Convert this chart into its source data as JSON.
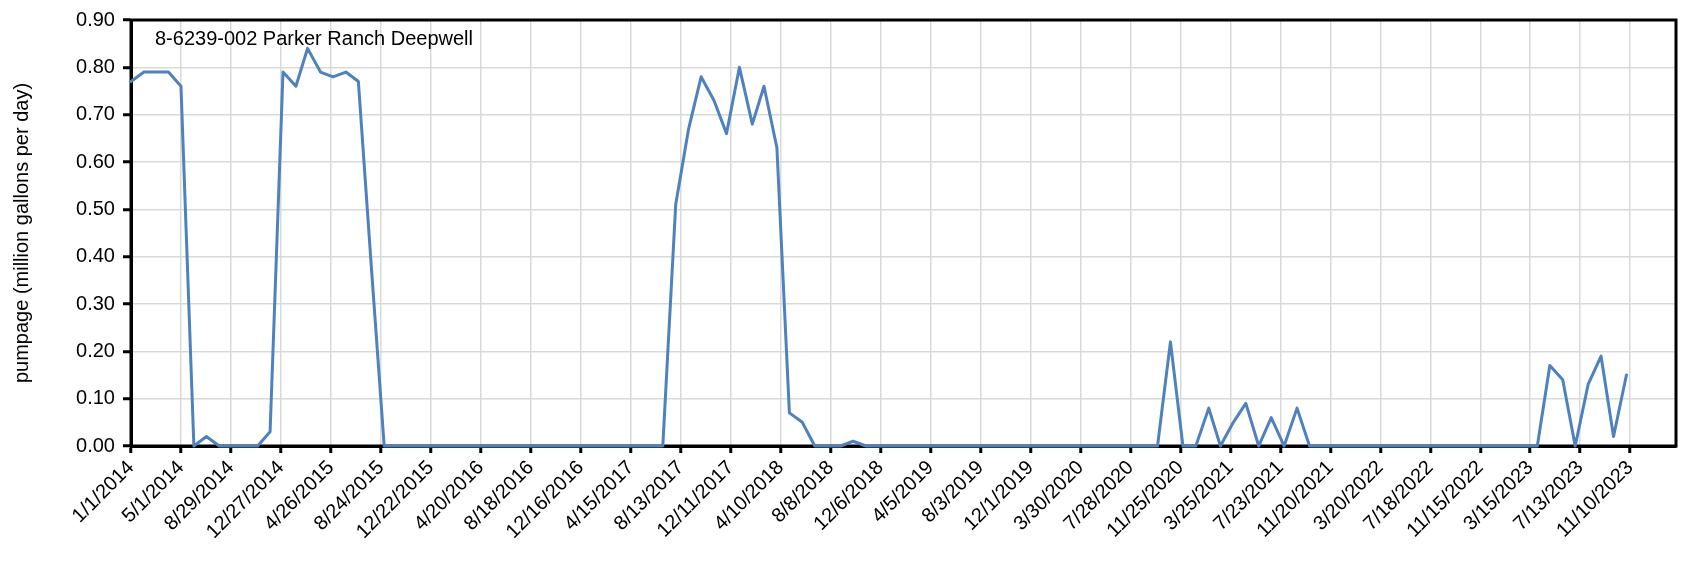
{
  "chart_data": {
    "type": "line",
    "title": "8-6239-002 Parker Ranch Deepwell",
    "ylabel": "pumpage (million gallons per day)",
    "x": [
      "2014-01",
      "2014-02",
      "2014-03",
      "2014-04",
      "2014-05",
      "2014-06",
      "2014-07",
      "2014-08",
      "2014-09",
      "2014-10",
      "2014-11",
      "2014-12",
      "2015-01",
      "2015-02",
      "2015-03",
      "2015-04",
      "2015-05",
      "2015-06",
      "2015-07",
      "2015-08",
      "2015-09",
      "2015-10",
      "2015-11",
      "2015-12",
      "2016-01",
      "2016-02",
      "2016-03",
      "2016-04",
      "2016-05",
      "2016-06",
      "2016-07",
      "2016-08",
      "2016-09",
      "2016-10",
      "2016-11",
      "2016-12",
      "2017-01",
      "2017-02",
      "2017-03",
      "2017-04",
      "2017-05",
      "2017-06",
      "2017-07",
      "2017-08",
      "2017-09",
      "2017-10",
      "2017-11",
      "2017-12",
      "2018-01",
      "2018-02",
      "2018-03",
      "2018-04",
      "2018-05",
      "2018-06",
      "2018-07",
      "2018-08",
      "2018-09",
      "2018-10",
      "2018-11",
      "2018-12",
      "2019-01",
      "2019-02",
      "2019-03",
      "2019-04",
      "2019-05",
      "2019-06",
      "2019-07",
      "2019-08",
      "2019-09",
      "2019-10",
      "2019-11",
      "2019-12",
      "2020-01",
      "2020-02",
      "2020-03",
      "2020-04",
      "2020-05",
      "2020-06",
      "2020-07",
      "2020-08",
      "2020-09",
      "2020-10",
      "2020-11",
      "2020-12",
      "2021-01",
      "2021-02",
      "2021-03",
      "2021-04",
      "2021-05",
      "2021-06",
      "2021-07",
      "2021-08",
      "2021-09",
      "2021-10",
      "2021-11",
      "2021-12",
      "2022-01",
      "2022-02",
      "2022-03",
      "2022-04",
      "2022-05",
      "2022-06",
      "2022-07",
      "2022-08",
      "2022-09",
      "2022-10",
      "2022-11",
      "2022-12",
      "2023-01",
      "2023-02",
      "2023-03",
      "2023-04",
      "2023-05",
      "2023-06",
      "2023-07",
      "2023-08",
      "2023-09",
      "2023-10",
      "2023-11"
    ],
    "series": [
      {
        "color": "#4f81bd",
        "values": [
          0.77,
          0.79,
          0.79,
          0.79,
          0.76,
          0,
          0.02,
          0,
          0,
          0,
          0,
          0.03,
          0.79,
          0.76,
          0.84,
          0.79,
          0.78,
          0.79,
          0.77,
          0.38,
          0,
          0,
          0,
          0,
          0,
          0,
          0,
          0,
          0,
          0,
          0,
          0,
          0,
          0,
          0,
          0,
          0,
          0,
          0,
          0,
          0,
          0,
          0,
          0.51,
          0.67,
          0.78,
          0.73,
          0.66,
          0.8,
          0.68,
          0.76,
          0.63,
          0.07,
          0.05,
          0,
          0,
          0,
          0.01,
          0,
          0,
          0,
          0,
          0,
          0,
          0,
          0,
          0,
          0,
          0,
          0,
          0,
          0,
          0,
          0,
          0,
          0,
          0,
          0,
          0,
          0,
          0,
          0,
          0.22,
          0,
          0,
          0.08,
          0,
          0.05,
          0.09,
          0,
          0.06,
          0,
          0.08,
          0,
          0,
          0,
          0,
          0,
          0,
          0,
          0,
          0,
          0,
          0,
          0,
          0,
          0,
          0,
          0,
          0,
          0,
          0,
          0.17,
          0.14,
          0,
          0.13,
          0.19,
          0.02,
          0.15
        ]
      }
    ],
    "xlim": [
      "2014-01-01",
      "2024-02-28"
    ],
    "xticks": [
      {
        "value": "2014-01-01",
        "label": "1/1/2014"
      },
      {
        "value": "2014-05-01",
        "label": "5/1/2014"
      },
      {
        "value": "2014-08-29",
        "label": "8/29/2014"
      },
      {
        "value": "2014-12-27",
        "label": "12/27/2014"
      },
      {
        "value": "2015-04-26",
        "label": "4/26/2015"
      },
      {
        "value": "2015-08-24",
        "label": "8/24/2015"
      },
      {
        "value": "2015-12-22",
        "label": "12/22/2015"
      },
      {
        "value": "2016-04-20",
        "label": "4/20/2016"
      },
      {
        "value": "2016-08-18",
        "label": "8/18/2016"
      },
      {
        "value": "2016-12-16",
        "label": "12/16/2016"
      },
      {
        "value": "2017-04-15",
        "label": "4/15/2017"
      },
      {
        "value": "2017-08-13",
        "label": "8/13/2017"
      },
      {
        "value": "2017-12-11",
        "label": "12/11/2017"
      },
      {
        "value": "2018-04-10",
        "label": "4/10/2018"
      },
      {
        "value": "2018-08-08",
        "label": "8/8/2018"
      },
      {
        "value": "2018-12-06",
        "label": "12/6/2018"
      },
      {
        "value": "2019-04-05",
        "label": "4/5/2019"
      },
      {
        "value": "2019-08-03",
        "label": "8/3/2019"
      },
      {
        "value": "2019-12-01",
        "label": "12/1/2019"
      },
      {
        "value": "2020-03-30",
        "label": "3/30/2020"
      },
      {
        "value": "2020-07-28",
        "label": "7/28/2020"
      },
      {
        "value": "2020-11-25",
        "label": "11/25/2020"
      },
      {
        "value": "2021-03-25",
        "label": "3/25/2021"
      },
      {
        "value": "2021-07-23",
        "label": "7/23/2021"
      },
      {
        "value": "2021-11-20",
        "label": "11/20/2021"
      },
      {
        "value": "2022-03-20",
        "label": "3/20/2022"
      },
      {
        "value": "2022-07-18",
        "label": "7/18/2022"
      },
      {
        "value": "2022-11-15",
        "label": "11/15/2022"
      },
      {
        "value": "2023-03-15",
        "label": "3/15/2023"
      },
      {
        "value": "2023-07-13",
        "label": "7/13/2023"
      },
      {
        "value": "2023-11-10",
        "label": "11/10/2023"
      }
    ],
    "ylim": [
      0,
      0.9
    ],
    "yticks": [
      {
        "value": 0,
        "label": "0.00"
      },
      {
        "value": 0.1,
        "label": "0.10"
      },
      {
        "value": 0.2,
        "label": "0.20"
      },
      {
        "value": 0.3,
        "label": "0.30"
      },
      {
        "value": 0.4,
        "label": "0.40"
      },
      {
        "value": 0.5,
        "label": "0.50"
      },
      {
        "value": 0.6,
        "label": "0.60"
      },
      {
        "value": 0.7,
        "label": "0.70"
      },
      {
        "value": 0.8,
        "label": "0.80"
      },
      {
        "value": 0.9,
        "label": "0.90"
      }
    ],
    "grid": true,
    "legend": false,
    "marker": "none",
    "line_style": "solid"
  }
}
